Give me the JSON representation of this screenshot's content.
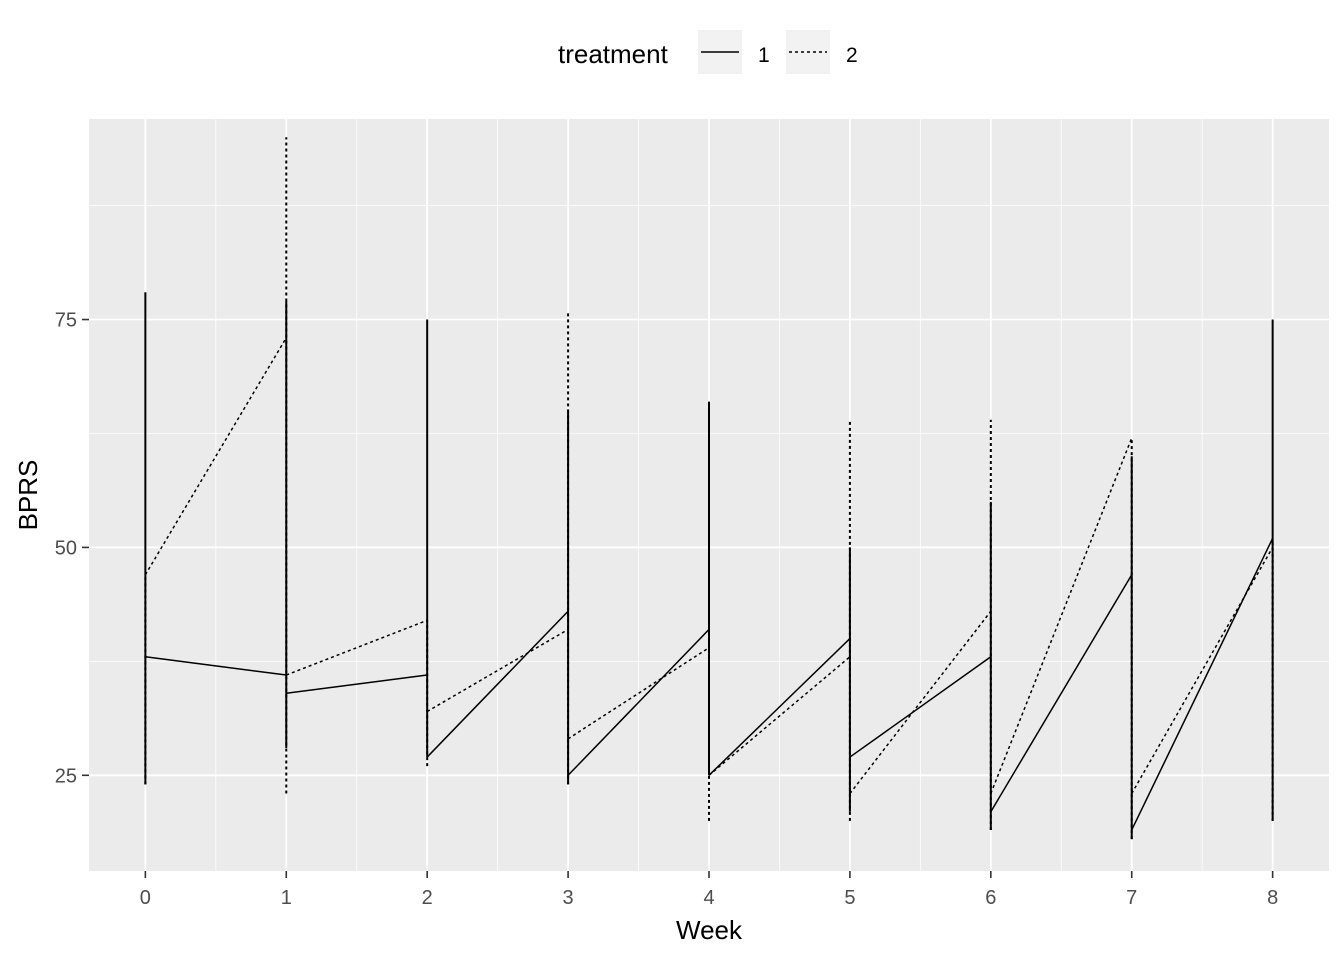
{
  "chart_data": {
    "type": "line",
    "xlabel": "Week",
    "ylabel": "BPRS",
    "xlim": [
      -0.4,
      8.4
    ],
    "ylim": [
      14.5,
      97
    ],
    "x_ticks": [
      0,
      1,
      2,
      3,
      4,
      5,
      6,
      7,
      8
    ],
    "y_ticks": [
      25,
      50,
      75
    ],
    "grid": true,
    "legend": {
      "title": "treatment",
      "position": "top",
      "entries": [
        {
          "label": "1",
          "linetype": "solid"
        },
        {
          "label": "2",
          "linetype": "dotted"
        }
      ]
    },
    "week_ranges": {
      "treatment_1": [
        [
          0,
          24,
          78
        ],
        [
          1,
          28,
          77
        ],
        [
          2,
          27,
          75
        ],
        [
          3,
          24,
          65
        ],
        [
          4,
          25,
          66
        ],
        [
          5,
          21,
          50
        ],
        [
          6,
          19,
          55
        ],
        [
          7,
          18,
          60
        ],
        [
          8,
          20,
          75
        ]
      ],
      "treatment_2": [
        [
          0,
          24,
          47
        ],
        [
          1,
          23,
          95
        ],
        [
          2,
          26,
          42
        ],
        [
          3,
          24,
          76
        ],
        [
          4,
          20,
          39
        ],
        [
          5,
          20,
          64
        ],
        [
          6,
          19,
          64
        ],
        [
          7,
          18,
          62
        ],
        [
          8,
          20,
          51
        ]
      ]
    },
    "connectors": {
      "treatment_1": [
        [
          [
            0,
            38
          ],
          [
            1,
            36
          ]
        ],
        [
          [
            1,
            34
          ],
          [
            2,
            36
          ]
        ],
        [
          [
            2,
            27
          ],
          [
            3,
            43
          ]
        ],
        [
          [
            3,
            25
          ],
          [
            4,
            41
          ]
        ],
        [
          [
            4,
            25
          ],
          [
            5,
            40
          ]
        ],
        [
          [
            5,
            27
          ],
          [
            6,
            38
          ]
        ],
        [
          [
            6,
            21
          ],
          [
            7,
            47
          ]
        ],
        [
          [
            7,
            19
          ],
          [
            8,
            51
          ]
        ]
      ],
      "treatment_2": [
        [
          [
            0,
            47
          ],
          [
            1,
            73
          ]
        ],
        [
          [
            1,
            36
          ],
          [
            2,
            42
          ]
        ],
        [
          [
            2,
            32
          ],
          [
            3,
            41
          ]
        ],
        [
          [
            3,
            29
          ],
          [
            4,
            39
          ]
        ],
        [
          [
            4,
            25
          ],
          [
            5,
            38
          ]
        ],
        [
          [
            5,
            23
          ],
          [
            6,
            43
          ]
        ],
        [
          [
            6,
            23
          ],
          [
            7,
            62
          ]
        ],
        [
          [
            7,
            23
          ],
          [
            8,
            50
          ]
        ]
      ]
    }
  }
}
